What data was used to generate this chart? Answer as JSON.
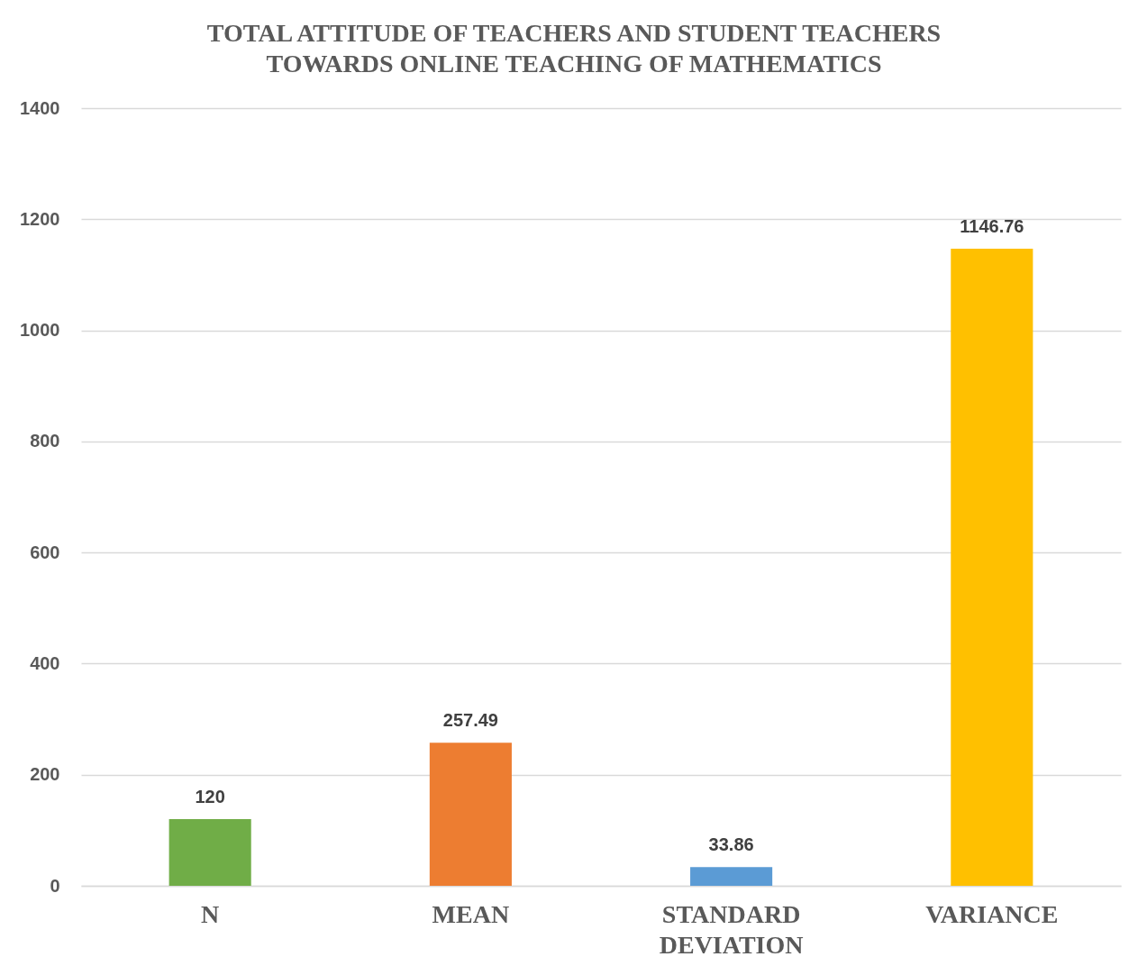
{
  "chart_data": {
    "type": "bar",
    "title": "TOTAL ATTITUDE OF TEACHERS AND STUDENT TEACHERS TOWARDS ONLINE TEACHING OF MATHEMATICS",
    "categories": [
      "N",
      "MEAN",
      "STANDARD DEVIATION",
      "VARIANCE"
    ],
    "values": [
      120,
      257.49,
      33.86,
      1146.76
    ],
    "colors": [
      "#70ad47",
      "#ed7d31",
      "#5b9bd5",
      "#ffc000"
    ],
    "ylim": [
      0,
      1400
    ],
    "yticks": [
      0,
      200,
      400,
      600,
      800,
      1000,
      1200,
      1400
    ],
    "grid": "y",
    "data_labels": true
  }
}
